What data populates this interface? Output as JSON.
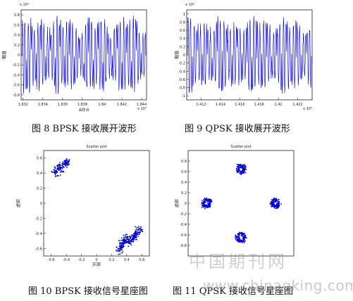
{
  "figures": [
    {
      "caption": "图 8 BPSK 接收展开波形",
      "chart_data": {
        "type": "line",
        "exponent_label": "x 10⁴",
        "ylabel": "幅值",
        "yticks": [
          "0.8",
          "0.6",
          "0.4",
          "0.2",
          "0",
          "-0.2",
          "-0.4",
          "-0.6",
          "-0.8"
        ],
        "ylim": [
          -0.9,
          0.9
        ],
        "xlabel": "采样点",
        "x_exponent_label": "x 10⁴",
        "xticks": [
          "1.832",
          "1.834",
          "1.836",
          "1.838",
          "1.84",
          "1.842",
          "1.844"
        ],
        "xlim": [
          1.8318,
          1.8445
        ],
        "series": [
          {
            "amplitude": 0.78,
            "cycles": 52,
            "color": "#0000ee"
          }
        ]
      }
    },
    {
      "caption": "图 9 QPSK 接收展开波形",
      "chart_data": {
        "type": "line",
        "exponent_label": "x 10⁴",
        "ylabel": "幅值",
        "yticks": [
          "1",
          "0.8",
          "0.6",
          "0.4",
          "0.2",
          "0",
          "-0.2",
          "-0.4",
          "-0.6",
          "-0.8",
          "-1"
        ],
        "ylim": [
          -1.1,
          1.1
        ],
        "xlabel": "",
        "x_exponent_label": "x 10⁴",
        "xticks": [
          "1.412",
          "1.414",
          "1.416",
          "1.418",
          "1.42",
          "1.422"
        ],
        "xlim": [
          1.4105,
          1.4235
        ],
        "series": [
          {
            "amplitude": 0.95,
            "cycles": 50,
            "color": "#0000ee"
          }
        ]
      }
    },
    {
      "caption": "图 10 BPSK 接收信号星座图",
      "chart_data": {
        "type": "scatter",
        "title": "Scatter plot",
        "ylabel": "虚部",
        "xlabel": "实部",
        "xticks": [
          "-0.6",
          "-0.4",
          "-0.2",
          "0",
          "0.2",
          "0.4",
          "0.6"
        ],
        "yticks": [
          "0.6",
          "0.4",
          "0.2",
          "0",
          "-0.2",
          "-0.4",
          "-0.6"
        ],
        "xlim": [
          -0.7,
          0.7
        ],
        "ylim": [
          -0.7,
          0.7
        ],
        "clusters": [
          {
            "segment": [
              [
                -0.56,
                0.4
              ],
              [
                -0.38,
                0.56
              ]
            ],
            "spread": 0.025
          },
          {
            "segment": [
              [
                0.3,
                -0.63
              ],
              [
                0.4,
                -0.44
              ]
            ],
            "spread": 0.022
          },
          {
            "segment": [
              [
                0.44,
                -0.52
              ],
              [
                0.58,
                -0.34
              ]
            ],
            "spread": 0.022
          }
        ],
        "point_color": "#0000cc"
      }
    },
    {
      "caption": "图 11 QPSK 接收信号星座图",
      "chart_data": {
        "type": "scatter",
        "title": "Scatter plot",
        "ylabel": "虚部",
        "xlabel": "",
        "xticks": [],
        "yticks": [
          "0.8",
          "0.6",
          "0.4",
          "0.2",
          "0",
          "-0.2",
          "-0.4",
          "-0.6",
          "-0.8"
        ],
        "xlim": [
          -1,
          1
        ],
        "ylim": [
          -1,
          1
        ],
        "clusters": [
          {
            "center": [
              0.0,
              0.65
            ],
            "radius": 0.09
          },
          {
            "center": [
              -0.65,
              0.0
            ],
            "radius": 0.09
          },
          {
            "center": [
              0.65,
              0.0
            ],
            "radius": 0.09
          },
          {
            "center": [
              0.0,
              -0.65
            ],
            "radius": 0.09
          }
        ],
        "point_color": "#0000cc"
      }
    }
  ],
  "watermark": {
    "chinese": "中国期刊网",
    "url": "www.chinaqking.com"
  }
}
